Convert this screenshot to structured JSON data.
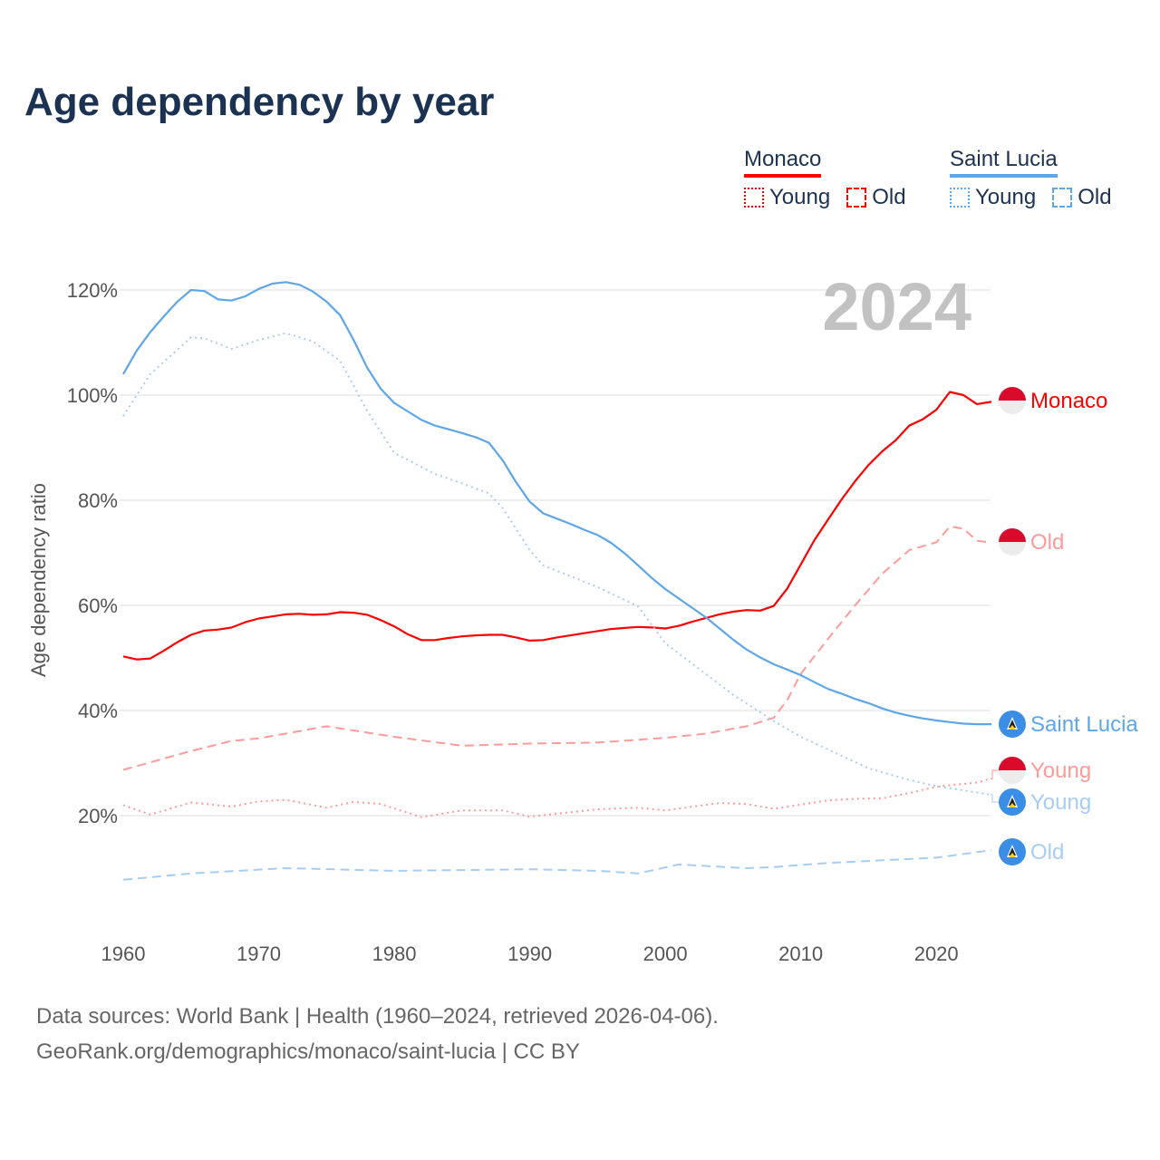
{
  "title": "Age dependency by year",
  "legend": {
    "groups": [
      {
        "name": "Monaco",
        "color": "#ff0000",
        "young_label": "Young",
        "old_label": "Old"
      },
      {
        "name": "Saint Lucia",
        "color": "#5ea6ea",
        "young_label": "Young",
        "old_label": "Old"
      }
    ]
  },
  "year_display": "2024",
  "footer": {
    "line1": "Data sources: World Bank | Health (1960–2024, retrieved 2026-04-06).",
    "line2": "GeoRank.org/demographics/monaco/saint-lucia | CC BY"
  },
  "chart_data": {
    "type": "line",
    "title": "Age dependency by year",
    "xlabel": "",
    "ylabel": "Age dependency ratio",
    "xlim": [
      1960,
      2024
    ],
    "ylim": [
      0,
      120
    ],
    "x_ticks": [
      "1960",
      "1970",
      "1980",
      "1990",
      "2000",
      "2010",
      "2020"
    ],
    "y_ticks": [
      "20%",
      "40%",
      "60%",
      "80%",
      "100%",
      "120%"
    ],
    "grid": true,
    "series": [
      {
        "name": "Monaco",
        "end_label": "Monaco",
        "country": "Monaco",
        "style": "solid",
        "color": "#ff0000",
        "x": [
          1960,
          1961,
          1962,
          1963,
          1964,
          1965,
          1966,
          1967,
          1968,
          1969,
          1970,
          1971,
          1972,
          1973,
          1974,
          1975,
          1976,
          1977,
          1978,
          1979,
          1980,
          1981,
          1982,
          1983,
          1984,
          1985,
          1986,
          1987,
          1988,
          1989,
          1990,
          1991,
          1992,
          1993,
          1994,
          1995,
          1996,
          1997,
          1998,
          1999,
          2000,
          2001,
          2002,
          2003,
          2004,
          2005,
          2006,
          2007,
          2008,
          2009,
          2010,
          2011,
          2012,
          2013,
          2014,
          2015,
          2016,
          2017,
          2018,
          2019,
          2020,
          2021,
          2022,
          2023,
          2024
        ],
        "y": [
          50.3,
          49.7,
          49.9,
          51.4,
          53,
          54.4,
          55.2,
          55.4,
          55.8,
          56.8,
          57.5,
          57.9,
          58.3,
          58.4,
          58.2,
          58.3,
          58.7,
          58.6,
          58.2,
          57.2,
          56,
          54.5,
          53.4,
          53.4,
          53.8,
          54.1,
          54.3,
          54.4,
          54.4,
          53.9,
          53.3,
          53.4,
          53.9,
          54.3,
          54.7,
          55.1,
          55.5,
          55.7,
          55.9,
          55.8,
          55.6,
          56.1,
          56.9,
          57.6,
          58.3,
          58.8,
          59.1,
          59,
          59.9,
          63.2,
          67.8,
          72.4,
          76.3,
          80.1,
          83.6,
          86.7,
          89.3,
          91.4,
          94.2,
          95.4,
          97.2,
          100.6,
          100,
          98.3,
          98.7
        ]
      },
      {
        "name": "Monaco Old",
        "end_label": "Old",
        "country": "Monaco",
        "style": "dashed",
        "color": "#ff9a9a",
        "x": [
          1960,
          1965,
          1968,
          1970,
          1972,
          1975,
          1978,
          1980,
          1985,
          1990,
          1995,
          2000,
          2003,
          2006,
          2008,
          2009,
          2010,
          2012,
          2014,
          2015,
          2016,
          2018,
          2020,
          2021,
          2022,
          2023,
          2024
        ],
        "y": [
          28.7,
          32.3,
          34.2,
          34.7,
          35.6,
          37,
          35.8,
          35,
          33.3,
          33.7,
          33.9,
          34.8,
          35.6,
          37,
          38.6,
          42,
          47,
          53.6,
          60,
          63,
          66,
          70.5,
          72,
          75,
          74.6,
          72.3,
          72
        ]
      },
      {
        "name": "Monaco Young",
        "end_label": "Young",
        "country": "Monaco",
        "style": "dotted",
        "color": "#ff9a9a",
        "x": [
          1960,
          1962,
          1965,
          1968,
          1970,
          1972,
          1975,
          1977,
          1979,
          1982,
          1985,
          1988,
          1990,
          1995,
          1998,
          2000,
          2004,
          2006,
          2008,
          2012,
          2014,
          2016,
          2018,
          2020,
          2023,
          2024
        ],
        "y": [
          22,
          20.2,
          22.5,
          21.7,
          22.7,
          23,
          21.5,
          22.6,
          22.2,
          19.7,
          21,
          21,
          19.8,
          21.2,
          21.5,
          21,
          22.4,
          22.2,
          21.3,
          22.9,
          23.2,
          23.3,
          24.3,
          25.5,
          26.3,
          27
        ]
      },
      {
        "name": "Saint Lucia",
        "end_label": "Saint Lucia",
        "country": "Saint Lucia",
        "style": "solid",
        "color": "#5ea6ea",
        "x": [
          1960,
          1961,
          1962,
          1963,
          1964,
          1965,
          1966,
          1967,
          1968,
          1969,
          1970,
          1971,
          1972,
          1973,
          1974,
          1975,
          1976,
          1977,
          1978,
          1979,
          1980,
          1981,
          1982,
          1983,
          1984,
          1985,
          1986,
          1987,
          1988,
          1989,
          1990,
          1991,
          1992,
          1993,
          1994,
          1995,
          1996,
          1997,
          1998,
          1999,
          2000,
          2001,
          2002,
          2003,
          2004,
          2005,
          2006,
          2007,
          2008,
          2009,
          2010,
          2011,
          2012,
          2013,
          2014,
          2015,
          2016,
          2017,
          2018,
          2019,
          2020,
          2021,
          2022,
          2023,
          2024
        ],
        "y": [
          104,
          108.5,
          112,
          115,
          117.8,
          120,
          119.8,
          118.2,
          118,
          118.8,
          120.2,
          121.2,
          121.5,
          121,
          119.7,
          117.8,
          115.2,
          110.5,
          105.2,
          101.2,
          98.5,
          96.9,
          95.3,
          94.2,
          93.5,
          92.8,
          92,
          90.9,
          87.6,
          83.4,
          79.7,
          77.5,
          76.5,
          75.5,
          74.4,
          73.4,
          71.9,
          69.9,
          67.6,
          65.2,
          63.1,
          61.3,
          59.5,
          57.7,
          55.6,
          53.5,
          51.6,
          50.1,
          48.8,
          47.8,
          46.7,
          45.4,
          44.1,
          43.2,
          42.2,
          41.4,
          40.4,
          39.6,
          39,
          38.5,
          38.1,
          37.8,
          37.5,
          37.4,
          37.4
        ]
      },
      {
        "name": "Saint Lucia Young",
        "end_label": "Young",
        "country": "Saint Lucia",
        "style": "dotted",
        "color": "#a8cdf2",
        "x": [
          1960,
          1962,
          1965,
          1966,
          1968,
          1970,
          1972,
          1974,
          1976,
          1978,
          1980,
          1983,
          1985,
          1987,
          1988,
          1990,
          1991,
          1995,
          1998,
          2000,
          2005,
          2008,
          2010,
          2015,
          2018,
          2020,
          2024
        ],
        "y": [
          96,
          104,
          111,
          110.8,
          108.8,
          110.5,
          111.8,
          110.2,
          106.5,
          97,
          89,
          85,
          83.2,
          81.3,
          78.5,
          70.5,
          67.6,
          63.5,
          59.8,
          52.8,
          43,
          38,
          35,
          29,
          26.8,
          25.6,
          24
        ]
      },
      {
        "name": "Saint Lucia Old",
        "end_label": "Old",
        "country": "Saint Lucia",
        "style": "dashed",
        "color": "#a8cdf2",
        "x": [
          1960,
          1965,
          1972,
          1980,
          1990,
          1995,
          1998,
          2001,
          2006,
          2008,
          2012,
          2020,
          2024
        ],
        "y": [
          7.8,
          9,
          10,
          9.5,
          9.8,
          9.5,
          9,
          10.7,
          10,
          10.2,
          11,
          12,
          13.4
        ]
      }
    ]
  }
}
